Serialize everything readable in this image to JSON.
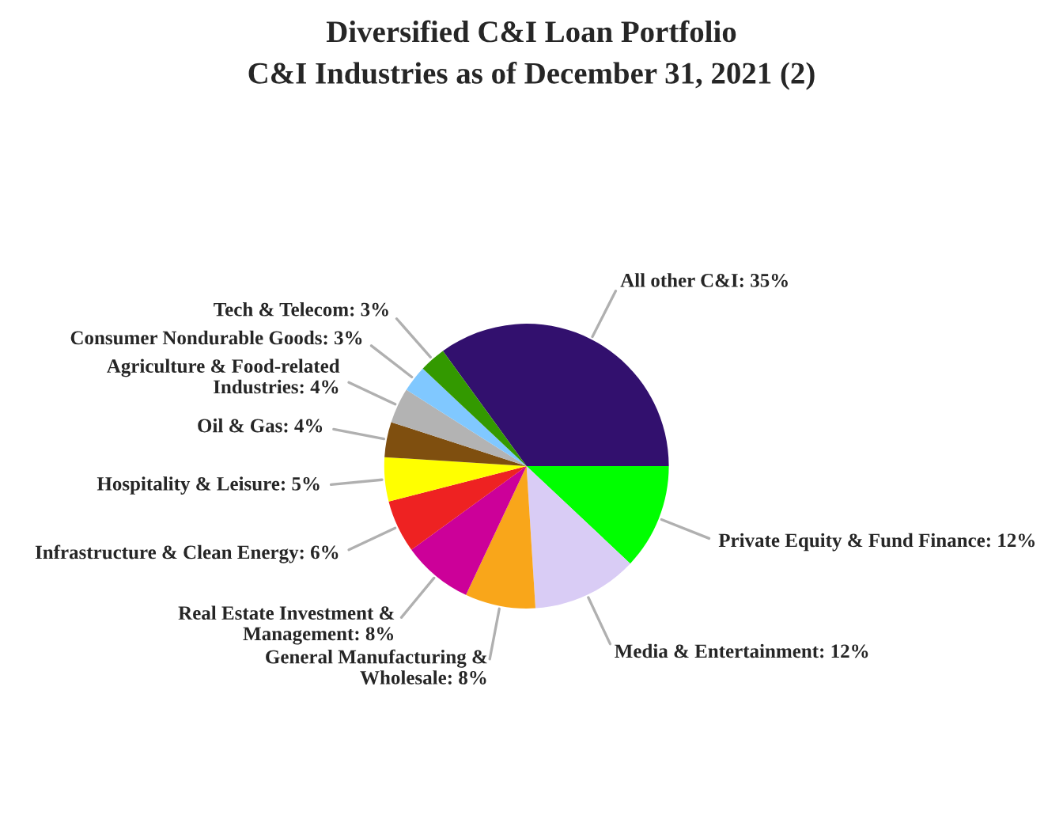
{
  "chart_data": {
    "type": "pie",
    "title": "Diversified C&I Loan Portfolio",
    "subtitle": "C&I Industries as of December 31, 2021 (2)",
    "categories": [
      "All other C&I",
      "Private Equity & Fund Finance",
      "Media & Entertainment",
      "General Manufacturing &\nWholesale",
      "Real Estate Investment &\nManagement",
      "Infrastructure & Clean Energy",
      "Hospitality & Leisure",
      "Oil & Gas",
      "Agriculture & Food-related\nIndustries",
      "Consumer Nondurable Goods",
      "Tech & Telecom"
    ],
    "values": [
      35,
      12,
      12,
      8,
      8,
      6,
      5,
      4,
      4,
      3,
      3
    ],
    "value_labels": [
      "35%",
      "12%",
      "12%",
      "8%",
      "8%",
      "6%",
      "5%",
      "4%",
      "4%",
      "3%",
      "3%"
    ],
    "colors": [
      "#32106e",
      "#00ff00",
      "#d9ccf5",
      "#f9a61a",
      "#cc0099",
      "#ee2222",
      "#ffff00",
      "#7f4f0f",
      "#b3b3b3",
      "#80c8ff",
      "#339900"
    ]
  }
}
